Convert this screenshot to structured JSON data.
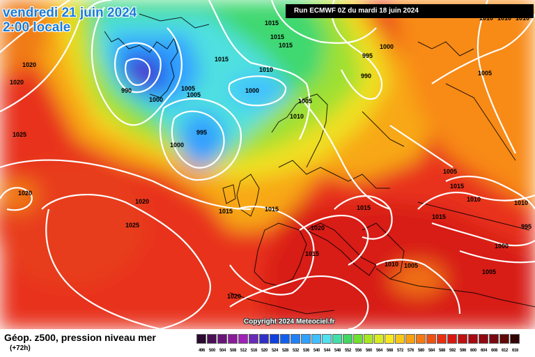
{
  "header": {
    "date_line": "vendredi 21 juin 2024",
    "time_line": "2:00 locale",
    "run_info": "Run ECMWF 0Z du mardi 18 juin 2024",
    "copyright": "Copyright 2024 Meteociel.fr"
  },
  "legend": {
    "title": "Géop. z500, pression niveau mer",
    "lead": "(+72h)",
    "values": [
      "496",
      "500",
      "504",
      "508",
      "512",
      "516",
      "520",
      "524",
      "528",
      "532",
      "536",
      "540",
      "544",
      "548",
      "552",
      "556",
      "560",
      "564",
      "568",
      "572",
      "576",
      "580",
      "584",
      "588",
      "592",
      "596",
      "600",
      "604",
      "608",
      "612",
      "616"
    ],
    "colors": [
      "#2a0a2e",
      "#4b0f55",
      "#6a1478",
      "#8a1a9a",
      "#a020b8",
      "#6a2ab8",
      "#3030c8",
      "#1040e0",
      "#1060f0",
      "#2080f8",
      "#30a0ff",
      "#40c0ff",
      "#50e0f0",
      "#40e0a8",
      "#40d860",
      "#70e030",
      "#a8e820",
      "#d8ec20",
      "#f8e820",
      "#f8c818",
      "#f8a010",
      "#f87810",
      "#f05010",
      "#e83010",
      "#d81810",
      "#c01010",
      "#a80810",
      "#900810",
      "#780810",
      "#600808",
      "#300404"
    ]
  },
  "isobars": [
    "1020",
    "1015",
    "1015",
    "1015",
    "1010",
    "995",
    "1000",
    "990",
    "1000",
    "1020",
    "990",
    "1005",
    "1005",
    "1010",
    "1005",
    "1025",
    "1000",
    "1015",
    "995",
    "1000",
    "1005",
    "1020",
    "1015",
    "1010",
    "1020",
    "1015",
    "1015",
    "1025",
    "1020",
    "1015",
    "1015",
    "1010",
    "1015",
    "1005",
    "995",
    "1000",
    "1010",
    "1005",
    "1005",
    "1020",
    "1010",
    "1010",
    "1010"
  ],
  "colors": {
    "sea_high": "#e83a1a",
    "accent": "#1a7cd8"
  }
}
